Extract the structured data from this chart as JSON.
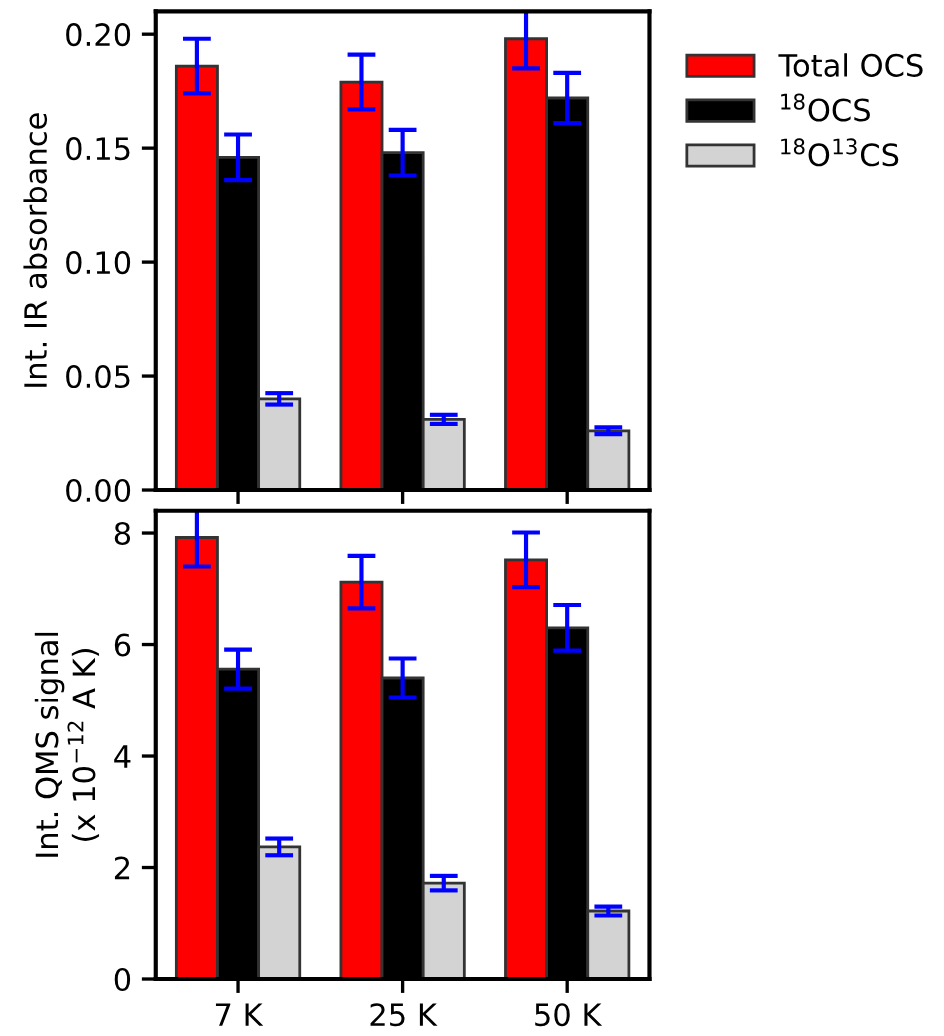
{
  "chart_data": [
    {
      "type": "bar",
      "ylabel": "Int. IR absorbance",
      "categories": [
        null,
        null,
        null
      ],
      "ylim": [
        0,
        0.21
      ],
      "yticks": [
        {
          "value": 0,
          "label": "0.00"
        },
        {
          "value": 0.05,
          "label": "0.05"
        },
        {
          "value": 0.1,
          "label": "0.10"
        },
        {
          "value": 0.15,
          "label": "0.15"
        },
        {
          "value": 0.2,
          "label": "0.20"
        }
      ],
      "tick_labels": "y",
      "legend": "right",
      "grid": false,
      "series": [
        {
          "name": "Total OCS",
          "color": "#ff0000",
          "values": [
            0.186,
            0.179,
            0.198
          ],
          "errors": [
            0.012,
            0.012,
            0.013
          ]
        },
        {
          "name": "$^{18}$OCS",
          "color": "#000000",
          "values": [
            0.146,
            0.148,
            0.172
          ],
          "errors": [
            0.01,
            0.01,
            0.011
          ]
        },
        {
          "name": "$^{18}$O$^{13}$CS",
          "color": "#d3d3d3",
          "values": [
            0.04,
            0.031,
            0.026
          ],
          "errors": [
            0.0025,
            0.002,
            0.0015
          ]
        }
      ]
    },
    {
      "type": "bar",
      "ylabel": "Int. QMS signal\n(x 10$^{−12}$ A K)",
      "categories": [
        "7 K",
        "25 K",
        "50 K"
      ],
      "ylim": [
        0,
        8.4
      ],
      "yticks": [
        0,
        2,
        4,
        6,
        8
      ],
      "legend": false,
      "grid": false,
      "series": [
        {
          "color": "#ff0000",
          "values": [
            7.92,
            7.12,
            7.52
          ],
          "errors": [
            0.52,
            0.47,
            0.49
          ]
        },
        {
          "color": "#000000",
          "values": [
            5.56,
            5.4,
            6.3
          ],
          "errors": [
            0.35,
            0.35,
            0.41
          ]
        },
        {
          "color": "#d3d3d3",
          "values": [
            2.37,
            1.72,
            1.22
          ],
          "errors": [
            0.15,
            0.13,
            0.08
          ]
        }
      ]
    }
  ]
}
